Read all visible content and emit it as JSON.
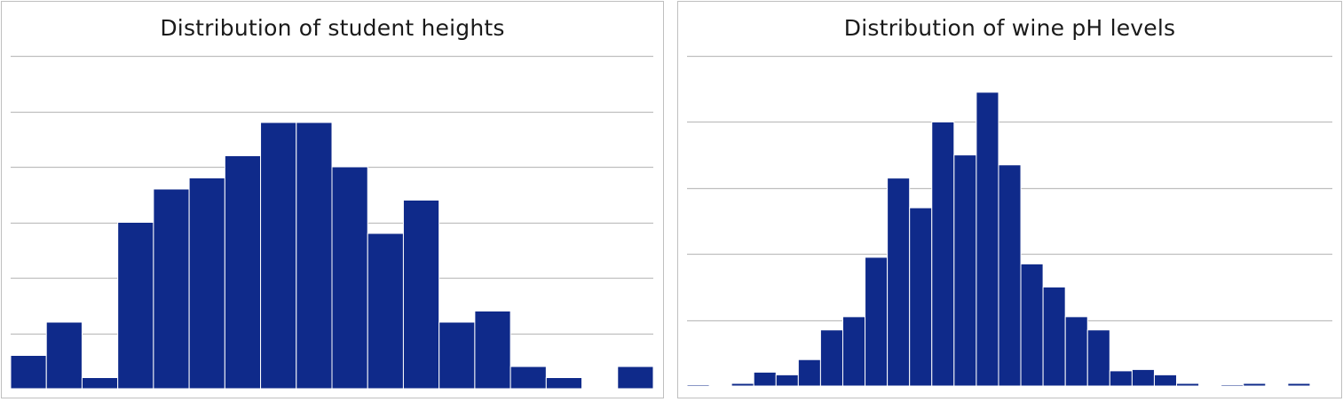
{
  "colors": {
    "bar": "#0f2a8a",
    "grid": "#bfbfbf",
    "bar_edge": "#ffffff"
  },
  "chart_data": [
    {
      "type": "bar",
      "title": "Distribution of student heights",
      "xlabel": "",
      "ylabel": "",
      "bins": 18,
      "values": [
        3,
        6,
        1,
        15,
        18,
        19,
        21,
        24,
        24,
        20,
        14,
        17,
        6,
        7,
        2,
        1,
        0,
        2
      ],
      "ylim": [
        0,
        30
      ],
      "ytick_step": 5,
      "grid": true,
      "legend": "none"
    },
    {
      "type": "bar",
      "title": "Distribution of wine pH levels",
      "xlabel": "",
      "ylabel": "",
      "bins": 29,
      "values": [
        2,
        0,
        4,
        21,
        17,
        40,
        85,
        105,
        195,
        315,
        270,
        400,
        350,
        445,
        335,
        185,
        150,
        105,
        85,
        23,
        25,
        17,
        4,
        0,
        2,
        4,
        0,
        4,
        0
      ],
      "ylim": [
        0,
        500
      ],
      "ytick_step": 100,
      "grid": true,
      "legend": "none"
    }
  ]
}
